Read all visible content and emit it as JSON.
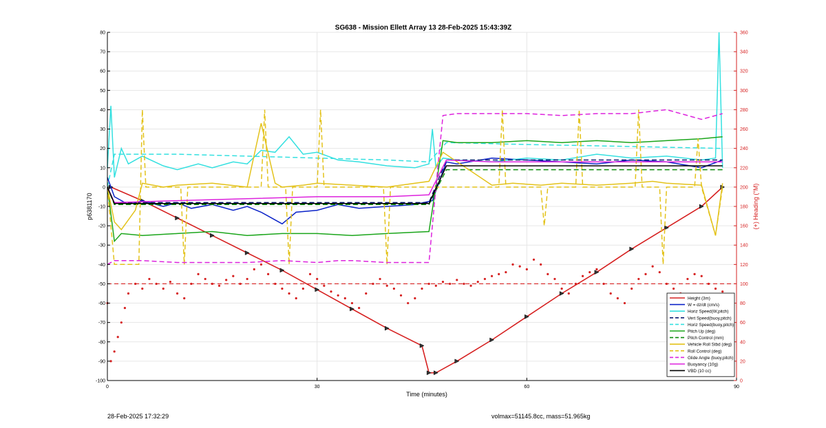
{
  "footer": {
    "timestamp": "28-Feb-2025 17:32:29",
    "stats": "volmax=51145.8cc, mass=51.965kg"
  },
  "chart_data": {
    "type": "line",
    "title": "SG638 - Mission Ellett Array 13 28-Feb-2025 15:43:39Z",
    "xlabel": "Time (minutes)",
    "ylabel": "p6381170",
    "y2label": "(+) Heading (°M)",
    "xlim": [
      0,
      90
    ],
    "ylim": [
      -100,
      80
    ],
    "y2lim": [
      0,
      360
    ],
    "xticks": [
      0,
      30,
      60,
      90
    ],
    "yticks": [
      -100,
      -90,
      -80,
      -70,
      -60,
      -50,
      -40,
      -30,
      -20,
      -10,
      0,
      10,
      20,
      30,
      40,
      50,
      60,
      70,
      80
    ],
    "y2ticks": [
      0,
      20,
      40,
      60,
      80,
      100,
      120,
      140,
      160,
      180,
      200,
      220,
      240,
      260,
      280,
      300,
      320,
      340,
      360
    ],
    "grid": true,
    "legend_position": "bottom-right",
    "colors": {
      "red": "#d62020",
      "blue": "#0a22c8",
      "cyan": "#33e0e0",
      "navy": "#0a1a70",
      "green": "#1aa51a",
      "darkgreen": "#0a8a0a",
      "yellow": "#e3c21a",
      "magenta": "#dd22dd",
      "black": "#000000",
      "axis2": "#d62020"
    },
    "series": [
      {
        "name": "Height (3m)",
        "style": "solid",
        "color": "red",
        "x": [
          0.5,
          5,
          10,
          15,
          20,
          25,
          30,
          35,
          40,
          45,
          46,
          47,
          50,
          55,
          60,
          65,
          70,
          75,
          80,
          85,
          88
        ],
        "y": [
          0,
          -7,
          -16,
          -25,
          -34,
          -43,
          -53,
          -63,
          -73,
          -82,
          -96,
          -96,
          -90,
          -79,
          -67,
          -55,
          -44,
          -32,
          -21,
          -10,
          0
        ]
      },
      {
        "name": "W = dz/dt (cm/s)",
        "style": "solid",
        "color": "blue",
        "x": [
          0,
          1,
          3,
          5,
          8,
          10,
          12,
          15,
          18,
          20,
          22,
          25,
          27,
          30,
          33,
          36,
          40,
          44,
          46.5,
          48.5,
          50,
          55,
          60,
          65,
          70,
          75,
          80,
          85,
          88
        ],
        "y": [
          5,
          -5,
          -9,
          -7,
          -10,
          -8,
          -11,
          -9,
          -12,
          -10,
          -13,
          -19,
          -13,
          -12,
          -9,
          -11,
          -10,
          -9,
          -7,
          13,
          12,
          15,
          14,
          13,
          12,
          14,
          13,
          10,
          14
        ]
      },
      {
        "name": "Horiz Speed(W,pitch)",
        "style": "solid",
        "color": "cyan",
        "x": [
          0,
          0.5,
          1,
          2,
          3,
          5,
          8,
          10,
          13,
          15,
          18,
          20,
          22,
          24,
          26,
          28,
          30,
          33,
          36,
          40,
          44,
          46,
          46.5,
          47,
          48,
          50,
          55,
          60,
          65,
          70,
          75,
          80,
          85,
          87,
          87.5,
          88
        ],
        "y": [
          10,
          42,
          5,
          20,
          12,
          16,
          11,
          9,
          12,
          10,
          13,
          12,
          19,
          18,
          26,
          17,
          18,
          14,
          13,
          11,
          10,
          12,
          30,
          10,
          15,
          14,
          13,
          15,
          14,
          17,
          15,
          16,
          14,
          15,
          80,
          10
        ]
      },
      {
        "name": "Vert Speed(buoy,pitch)",
        "style": "dash",
        "color": "navy",
        "x": [
          0,
          1,
          46,
          48.5,
          88
        ],
        "y": [
          0,
          -8,
          -8,
          14,
          14
        ]
      },
      {
        "name": "Horiz Speed(buoy,pitch)",
        "style": "dash",
        "color": "cyan",
        "x": [
          0,
          1,
          10,
          20,
          30,
          40,
          46,
          48.5,
          60,
          75,
          88
        ],
        "y": [
          0,
          17,
          17,
          16,
          15,
          14,
          13,
          23,
          22,
          21,
          20
        ]
      },
      {
        "name": "Pitch Up (deg)",
        "style": "solid",
        "color": "green",
        "x": [
          0,
          1,
          2,
          5,
          10,
          15,
          20,
          25,
          30,
          35,
          40,
          46,
          48,
          50,
          55,
          60,
          65,
          70,
          75,
          80,
          85,
          88
        ],
        "y": [
          0,
          -28,
          -24,
          -25,
          -24,
          -23,
          -25,
          -24,
          -24,
          -25,
          -24,
          -23,
          24,
          23,
          23,
          24,
          23,
          24,
          23,
          24,
          25,
          26
        ]
      },
      {
        "name": "Pitch Control (mm)",
        "style": "dash",
        "color": "darkgreen",
        "x": [
          0,
          1,
          46,
          48.5,
          88
        ],
        "y": [
          0,
          -9,
          -9,
          9,
          9
        ]
      },
      {
        "name": "Vehicle Roll Stbd (deg)",
        "style": "solid",
        "color": "yellow",
        "x": [
          0,
          1,
          2,
          4,
          5,
          8,
          10,
          15,
          20,
          22,
          24,
          25,
          28,
          30,
          35,
          40,
          46,
          48,
          55,
          58,
          62,
          65,
          70,
          75,
          78,
          80,
          85,
          87,
          88
        ],
        "y": [
          0,
          -18,
          -22,
          -12,
          2,
          0,
          1,
          2,
          0,
          33,
          2,
          0,
          1,
          2,
          1,
          0,
          3,
          18,
          1,
          2,
          1,
          2,
          1,
          2,
          3,
          2,
          1,
          -25,
          2
        ]
      },
      {
        "name": "Roll Control (deg)",
        "style": "dash",
        "color": "yellow",
        "x": [
          0,
          1,
          4.5,
          5,
          5.5,
          10.5,
          11,
          11.5,
          22,
          22.5,
          23,
          25.5,
          26,
          26.5,
          30,
          30.5,
          31,
          39.5,
          40,
          40.5,
          46,
          48,
          56,
          56.5,
          57,
          62,
          62.5,
          63,
          67,
          67.5,
          68,
          75.5,
          76,
          76.5,
          79,
          79.5,
          80,
          84,
          84.5,
          85,
          87,
          88
        ],
        "y": [
          0,
          -40,
          -40,
          40,
          0,
          0,
          -40,
          0,
          0,
          40,
          0,
          0,
          -40,
          0,
          0,
          40,
          0,
          0,
          -40,
          0,
          0,
          0,
          0,
          40,
          0,
          0,
          -20,
          0,
          0,
          40,
          0,
          0,
          40,
          0,
          0,
          -40,
          0,
          0,
          25,
          0,
          -25,
          0
        ]
      },
      {
        "name": "Glide Angle (buoy,pitch)",
        "style": "dash",
        "color": "magenta",
        "x": [
          0,
          1,
          5,
          10,
          20,
          25,
          30,
          33,
          35,
          40,
          46,
          47,
          48,
          50,
          60,
          65,
          70,
          75,
          80,
          85,
          88
        ],
        "y": [
          -40,
          -38,
          -38,
          -39,
          -39,
          -38,
          -39,
          -38,
          -38,
          -39,
          -39,
          0,
          37,
          38,
          38,
          37,
          38,
          38,
          40,
          35,
          38
        ]
      },
      {
        "name": "Buoyancy (10g)",
        "style": "solid",
        "color": "magenta",
        "x": [
          0,
          1,
          10,
          20,
          30,
          40,
          46,
          48.5,
          55,
          65,
          75,
          85,
          88
        ],
        "y": [
          0,
          -8,
          -7,
          -6,
          -5,
          -5,
          -4,
          14,
          13,
          13,
          13,
          13,
          13
        ]
      },
      {
        "name": "VBD (10 cc)",
        "style": "solid",
        "color": "black",
        "x": [
          0,
          1,
          46,
          48.5,
          88
        ],
        "y": [
          0,
          -8.5,
          -8.5,
          11,
          11
        ]
      },
      {
        "name": "Heading",
        "style": "dots",
        "color": "red",
        "axis": "right",
        "x": [
          0,
          0.5,
          1,
          1.5,
          2,
          2.5,
          3,
          4,
          5,
          6,
          7,
          8,
          9,
          10,
          11,
          12,
          13,
          14,
          15,
          16,
          17,
          18,
          19,
          20,
          21,
          22,
          23,
          24,
          25,
          26,
          27,
          28,
          29,
          30,
          31,
          32,
          33,
          34,
          35,
          36,
          37,
          38,
          39,
          40,
          41,
          42,
          43,
          44,
          45,
          46,
          47,
          48,
          49,
          50,
          51,
          52,
          53,
          54,
          55,
          56,
          57,
          58,
          59,
          60,
          61,
          62,
          63,
          64,
          65,
          66,
          67,
          68,
          69,
          70,
          71,
          72,
          73,
          74,
          75,
          76,
          77,
          78,
          79,
          80,
          81,
          82,
          83,
          84,
          85,
          86,
          87,
          88
        ],
        "y": [
          80,
          20,
          30,
          45,
          60,
          75,
          90,
          100,
          95,
          105,
          100,
          95,
          102,
          90,
          85,
          100,
          110,
          105,
          100,
          98,
          104,
          108,
          100,
          105,
          115,
          120,
          110,
          100,
          95,
          90,
          85,
          95,
          110,
          105,
          98,
          92,
          88,
          85,
          80,
          75,
          90,
          100,
          105,
          98,
          95,
          88,
          80,
          85,
          95,
          100,
          98,
          102,
          100,
          104,
          100,
          98,
          102,
          105,
          108,
          110,
          112,
          120,
          118,
          115,
          125,
          120,
          110,
          105,
          95,
          90,
          100,
          108,
          112,
          115,
          100,
          90,
          85,
          80,
          95,
          105,
          110,
          118,
          112,
          100,
          95,
          90,
          105,
          110,
          108,
          100,
          95,
          92
        ]
      }
    ],
    "markers_on": "Height (3m)"
  }
}
